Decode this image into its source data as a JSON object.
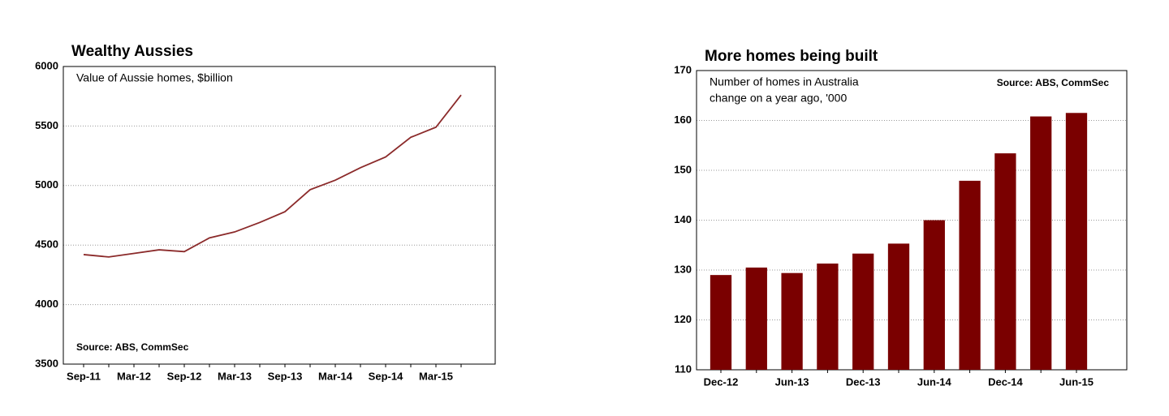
{
  "chart_data": [
    {
      "type": "line",
      "title": "Wealthy Aussies",
      "subtitle": [
        "Value of Aussie homes, $billion"
      ],
      "source": "Source: ABS, CommSec",
      "categories": [
        "Sep-11",
        null,
        "Mar-12",
        null,
        "Sep-12",
        null,
        "Mar-13",
        null,
        "Sep-13",
        null,
        "Mar-14",
        null,
        "Sep-14",
        null,
        "Mar-15",
        null
      ],
      "values": [
        4420,
        4400,
        4430,
        4460,
        4445,
        4560,
        4610,
        4690,
        4780,
        4965,
        5045,
        5150,
        5240,
        5405,
        5490,
        5760
      ],
      "color": "#8b2a2a",
      "ylim": [
        3500,
        6000
      ],
      "yticks": [
        3500,
        4000,
        4500,
        5000,
        5500,
        6000
      ],
      "grid": true,
      "source_corner": "bottom-left"
    },
    {
      "type": "bar",
      "title": "More homes being built",
      "subtitle": [
        "Number of homes in Australia",
        "change on a year ago, '000"
      ],
      "source": "Source: ABS, CommSec",
      "categories": [
        "Dec-12",
        null,
        "Jun-13",
        null,
        "Dec-13",
        null,
        "Jun-14",
        null,
        "Dec-14",
        null,
        "Jun-15"
      ],
      "values": [
        129,
        130.5,
        129.4,
        131.3,
        133.3,
        135.3,
        140,
        147.9,
        153.4,
        160.8,
        161.5
      ],
      "color": "#7a0000",
      "ylim": [
        110,
        170
      ],
      "yticks": [
        110,
        120,
        130,
        140,
        150,
        160,
        170
      ],
      "grid": true,
      "source_corner": "top-right"
    }
  ]
}
